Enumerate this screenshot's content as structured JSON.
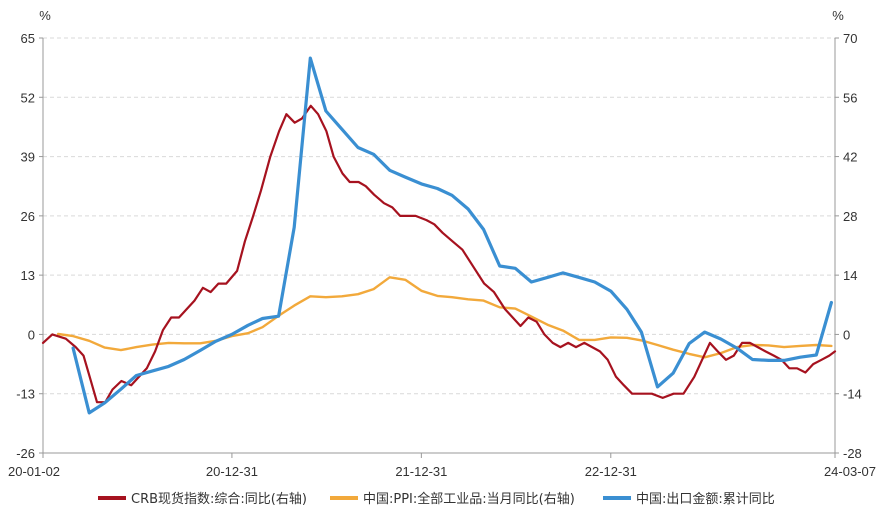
{
  "chart_data": {
    "type": "line",
    "left_unit": "%",
    "right_unit": "%",
    "left_axis": {
      "ticks": [
        -26,
        -13,
        0,
        13,
        26,
        39,
        52,
        65
      ],
      "range": [
        -26,
        65
      ]
    },
    "right_axis": {
      "ticks": [
        -28,
        -14,
        0,
        14,
        28,
        42,
        56,
        70
      ],
      "range": [
        -28,
        70
      ]
    },
    "x_range": [
      "2020-01-02",
      "2024-03-07"
    ],
    "x_ticks": [
      {
        "date": "2020-01-02",
        "label": "20-01-02"
      },
      {
        "date": "2020-12-31",
        "label": "20-12-31"
      },
      {
        "date": "2021-12-31",
        "label": "21-12-31"
      },
      {
        "date": "2022-12-31",
        "label": "22-12-31"
      },
      {
        "date": "2024-03-07",
        "label": "24-03-07"
      }
    ],
    "series": [
      {
        "name": "CRB现货指数:综合:同比(右轴)",
        "axis": "right",
        "color": "#A6121F",
        "points": [
          [
            "2020-01-02",
            -2
          ],
          [
            "2020-01-20",
            0
          ],
          [
            "2020-02-15",
            -1
          ],
          [
            "2020-03-05",
            -3
          ],
          [
            "2020-03-20",
            -5
          ],
          [
            "2020-04-01",
            -10
          ],
          [
            "2020-04-15",
            -16
          ],
          [
            "2020-05-01",
            -16
          ],
          [
            "2020-05-15",
            -13
          ],
          [
            "2020-06-01",
            -11
          ],
          [
            "2020-06-20",
            -12
          ],
          [
            "2020-07-05",
            -10
          ],
          [
            "2020-07-20",
            -8
          ],
          [
            "2020-08-05",
            -4
          ],
          [
            "2020-08-20",
            1
          ],
          [
            "2020-09-05",
            4
          ],
          [
            "2020-09-20",
            4
          ],
          [
            "2020-10-05",
            6
          ],
          [
            "2020-10-20",
            8
          ],
          [
            "2020-11-05",
            11
          ],
          [
            "2020-11-20",
            10
          ],
          [
            "2020-12-05",
            12
          ],
          [
            "2020-12-20",
            12
          ],
          [
            "2021-01-10",
            15
          ],
          [
            "2021-01-25",
            22
          ],
          [
            "2021-02-10",
            28
          ],
          [
            "2021-02-25",
            34
          ],
          [
            "2021-03-15",
            42
          ],
          [
            "2021-04-01",
            48
          ],
          [
            "2021-04-15",
            52
          ],
          [
            "2021-05-01",
            50
          ],
          [
            "2021-05-15",
            51
          ],
          [
            "2021-06-01",
            54
          ],
          [
            "2021-06-15",
            52
          ],
          [
            "2021-07-01",
            48
          ],
          [
            "2021-07-15",
            42
          ],
          [
            "2021-08-01",
            38
          ],
          [
            "2021-08-15",
            36
          ],
          [
            "2021-09-01",
            36
          ],
          [
            "2021-09-15",
            35
          ],
          [
            "2021-10-01",
            33
          ],
          [
            "2021-10-20",
            31
          ],
          [
            "2021-11-05",
            30
          ],
          [
            "2021-11-20",
            28
          ],
          [
            "2021-12-05",
            28
          ],
          [
            "2021-12-20",
            28
          ],
          [
            "2022-01-10",
            27
          ],
          [
            "2022-01-25",
            26
          ],
          [
            "2022-02-10",
            24
          ],
          [
            "2022-03-01",
            22
          ],
          [
            "2022-03-20",
            20
          ],
          [
            "2022-04-10",
            16
          ],
          [
            "2022-05-01",
            12
          ],
          [
            "2022-05-20",
            10
          ],
          [
            "2022-06-10",
            6
          ],
          [
            "2022-06-25",
            4
          ],
          [
            "2022-07-10",
            2
          ],
          [
            "2022-07-25",
            4
          ],
          [
            "2022-08-10",
            3
          ],
          [
            "2022-08-25",
            0
          ],
          [
            "2022-09-10",
            -2
          ],
          [
            "2022-09-25",
            -3
          ],
          [
            "2022-10-10",
            -2
          ],
          [
            "2022-10-25",
            -3
          ],
          [
            "2022-11-10",
            -2
          ],
          [
            "2022-11-25",
            -3
          ],
          [
            "2022-12-10",
            -4
          ],
          [
            "2022-12-25",
            -6
          ],
          [
            "2023-01-10",
            -10
          ],
          [
            "2023-01-25",
            -12
          ],
          [
            "2023-02-10",
            -14
          ],
          [
            "2023-03-01",
            -14
          ],
          [
            "2023-03-20",
            -14
          ],
          [
            "2023-04-10",
            -15
          ],
          [
            "2023-05-01",
            -14
          ],
          [
            "2023-05-20",
            -14
          ],
          [
            "2023-06-10",
            -10
          ],
          [
            "2023-06-25",
            -6
          ],
          [
            "2023-07-10",
            -2
          ],
          [
            "2023-07-25",
            -4
          ],
          [
            "2023-08-10",
            -6
          ],
          [
            "2023-08-25",
            -5
          ],
          [
            "2023-09-10",
            -2
          ],
          [
            "2023-09-25",
            -2
          ],
          [
            "2023-10-10",
            -3
          ],
          [
            "2023-10-25",
            -4
          ],
          [
            "2023-11-10",
            -5
          ],
          [
            "2023-11-25",
            -6
          ],
          [
            "2023-12-10",
            -8
          ],
          [
            "2023-12-25",
            -8
          ],
          [
            "2024-01-10",
            -9
          ],
          [
            "2024-01-25",
            -7
          ],
          [
            "2024-02-10",
            -6
          ],
          [
            "2024-02-25",
            -5
          ],
          [
            "2024-03-07",
            -4
          ]
        ]
      },
      {
        "name": "中国:PPI:全部工业品:当月同比(右轴)",
        "axis": "right",
        "color": "#F2A93B",
        "points": [
          [
            "2020-01-31",
            0.1
          ],
          [
            "2020-02-29",
            -0.4
          ],
          [
            "2020-03-31",
            -1.5
          ],
          [
            "2020-04-30",
            -3.1
          ],
          [
            "2020-05-31",
            -3.7
          ],
          [
            "2020-06-30",
            -3.0
          ],
          [
            "2020-07-31",
            -2.4
          ],
          [
            "2020-08-31",
            -2.0
          ],
          [
            "2020-09-30",
            -2.1
          ],
          [
            "2020-10-31",
            -2.1
          ],
          [
            "2020-11-30",
            -1.5
          ],
          [
            "2020-12-31",
            -0.4
          ],
          [
            "2021-01-31",
            0.3
          ],
          [
            "2021-02-28",
            1.7
          ],
          [
            "2021-03-31",
            4.4
          ],
          [
            "2021-04-30",
            6.8
          ],
          [
            "2021-05-31",
            9.0
          ],
          [
            "2021-06-30",
            8.8
          ],
          [
            "2021-07-31",
            9.0
          ],
          [
            "2021-08-31",
            9.5
          ],
          [
            "2021-09-30",
            10.7
          ],
          [
            "2021-10-31",
            13.5
          ],
          [
            "2021-11-30",
            12.9
          ],
          [
            "2021-12-31",
            10.3
          ],
          [
            "2022-01-31",
            9.1
          ],
          [
            "2022-02-28",
            8.8
          ],
          [
            "2022-03-31",
            8.3
          ],
          [
            "2022-04-30",
            8.0
          ],
          [
            "2022-05-31",
            6.4
          ],
          [
            "2022-06-30",
            6.1
          ],
          [
            "2022-07-31",
            4.2
          ],
          [
            "2022-08-31",
            2.3
          ],
          [
            "2022-09-30",
            0.9
          ],
          [
            "2022-10-31",
            -1.3
          ],
          [
            "2022-11-30",
            -1.3
          ],
          [
            "2022-12-31",
            -0.7
          ],
          [
            "2023-01-31",
            -0.8
          ],
          [
            "2023-02-28",
            -1.4
          ],
          [
            "2023-03-31",
            -2.5
          ],
          [
            "2023-04-30",
            -3.6
          ],
          [
            "2023-05-31",
            -4.6
          ],
          [
            "2023-06-30",
            -5.4
          ],
          [
            "2023-07-31",
            -4.4
          ],
          [
            "2023-08-31",
            -3.0
          ],
          [
            "2023-09-30",
            -2.5
          ],
          [
            "2023-10-31",
            -2.6
          ],
          [
            "2023-11-30",
            -3.0
          ],
          [
            "2023-12-31",
            -2.7
          ],
          [
            "2024-01-31",
            -2.5
          ],
          [
            "2024-02-29",
            -2.7
          ]
        ]
      },
      {
        "name": "中国:出口金额:累计同比",
        "axis": "left",
        "color": "#3A8FD2",
        "points": [
          [
            "2020-02-29",
            -3
          ],
          [
            "2020-03-31",
            -17.2
          ],
          [
            "2020-04-30",
            -15
          ],
          [
            "2020-05-31",
            -12
          ],
          [
            "2020-06-30",
            -9
          ],
          [
            "2020-07-31",
            -8
          ],
          [
            "2020-08-31",
            -7
          ],
          [
            "2020-09-30",
            -5.5
          ],
          [
            "2020-10-31",
            -3.5
          ],
          [
            "2020-11-30",
            -1.5
          ],
          [
            "2020-12-31",
            0
          ],
          [
            "2021-01-31",
            2
          ],
          [
            "2021-02-28",
            3.5
          ],
          [
            "2021-03-31",
            4
          ],
          [
            "2021-04-30",
            23.5
          ],
          [
            "2021-05-31",
            60.6
          ],
          [
            "2021-06-30",
            49
          ],
          [
            "2021-07-31",
            45
          ],
          [
            "2021-08-31",
            41
          ],
          [
            "2021-09-30",
            39.5
          ],
          [
            "2021-10-31",
            36
          ],
          [
            "2021-11-30",
            34.5
          ],
          [
            "2021-12-31",
            33
          ],
          [
            "2022-01-31",
            32
          ],
          [
            "2022-02-28",
            30.5
          ],
          [
            "2022-03-31",
            27.5
          ],
          [
            "2022-04-30",
            23
          ],
          [
            "2022-05-31",
            15
          ],
          [
            "2022-06-30",
            14.5
          ],
          [
            "2022-07-31",
            11.5
          ],
          [
            "2022-08-31",
            12.5
          ],
          [
            "2022-09-30",
            13.5
          ],
          [
            "2022-10-31",
            12.5
          ],
          [
            "2022-11-30",
            11.5
          ],
          [
            "2022-12-31",
            9.5
          ],
          [
            "2023-01-31",
            5.5
          ],
          [
            "2023-02-28",
            0.5
          ],
          [
            "2023-03-31",
            -11.5
          ],
          [
            "2023-04-30",
            -8.5
          ],
          [
            "2023-05-31",
            -2
          ],
          [
            "2023-06-30",
            0.5
          ],
          [
            "2023-07-31",
            -1
          ],
          [
            "2023-08-31",
            -3
          ],
          [
            "2023-09-30",
            -5.5
          ],
          [
            "2023-10-31",
            -5.7
          ],
          [
            "2023-11-30",
            -5.7
          ],
          [
            "2023-12-31",
            -5
          ],
          [
            "2024-01-31",
            -4.5
          ],
          [
            "2024-02-29",
            7
          ]
        ]
      }
    ],
    "legend": {
      "position": "bottom"
    }
  }
}
